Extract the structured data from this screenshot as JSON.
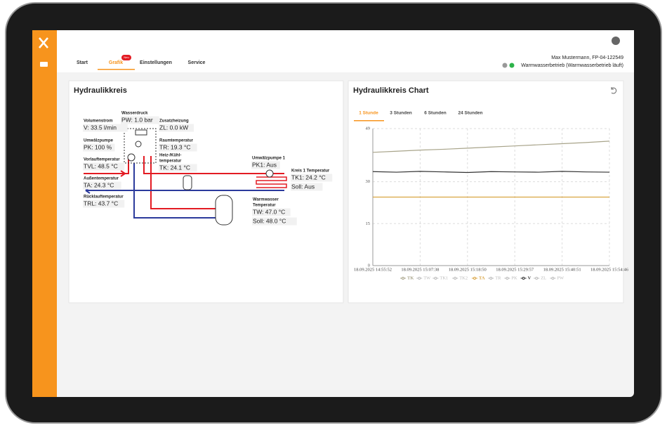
{
  "nav": {
    "tabs": [
      "Start",
      "Grafik",
      "Einstellungen",
      "Service"
    ],
    "badge": "Neu"
  },
  "user": {
    "name": "Max Mustermann, FP-04-122549",
    "status": "Warmwasserbetrieb (Warmwasserbetrieb läuft)"
  },
  "diagram": {
    "title": "Hydraulikkreis",
    "fields": [
      {
        "label": [
          "Wasserdruck"
        ],
        "values": [
          "PW: 1.0 bar"
        ]
      },
      {
        "label": [
          "Volumenstrom"
        ],
        "values": [
          "V: 33.5 l/min"
        ]
      },
      {
        "label": [
          "Zusatzheizung"
        ],
        "values": [
          "ZL: 0.0 kW"
        ]
      },
      {
        "label": [
          "Umwälzpumpe"
        ],
        "values": [
          "PK: 100 %"
        ]
      },
      {
        "label": [
          "Raumtemperatur"
        ],
        "values": [
          "TR: 19.3 °C"
        ]
      },
      {
        "label": [
          "Vorlauftemperatur"
        ],
        "values": [
          "TVL: 48.5 °C"
        ]
      },
      {
        "label": [
          "Heiz-/Kühl-",
          "temperatur"
        ],
        "values": [
          "TK: 24.1 °C"
        ]
      },
      {
        "label": [
          "Außentemperatur"
        ],
        "values": [
          "TA: 24.3 °C"
        ]
      },
      {
        "label": [
          "Rücklauftemperatur"
        ],
        "values": [
          "TRL: 43.7 °C"
        ]
      },
      {
        "label": [
          "Umwälzpumpe 1"
        ],
        "values": [
          "PK1: Aus"
        ]
      },
      {
        "label": [
          "Kreis 1 Temperatur"
        ],
        "values": [
          "TK1: 24.2 °C",
          "Soll: Aus"
        ]
      },
      {
        "label": [
          "Warmwasser",
          "Temperatur"
        ],
        "values": [
          "TW: 47.0 °C",
          "Soll: 48.0 °C"
        ]
      }
    ]
  },
  "chart_data": {
    "type": "line",
    "title": "Hydraulikkreis Chart",
    "ranges": [
      "1 Stunde",
      "3 Stunden",
      "6 Stunden",
      "24 Stunden"
    ],
    "categories": [
      "18.09.2025 14:55:52",
      null,
      "18.09.2025 15:07:38",
      null,
      "18.09.2025 15:18:50",
      null,
      "18.09.2025 15:29:57",
      null,
      "18.09.2025 15:40:51",
      null,
      "18.09.2025 15:54:46"
    ],
    "ylim": [
      0,
      49
    ],
    "yticks": [
      0,
      15,
      30,
      49
    ],
    "grid": true,
    "series": [
      {
        "name": "TK",
        "color": "#a8a48a",
        "values": [
          40.5,
          40.9,
          41.3,
          41.6,
          42,
          42.4,
          42.8,
          43.2,
          43.6,
          44,
          44.5
        ]
      },
      {
        "name": "TW",
        "color": "#bbbbbb",
        "hidden": true
      },
      {
        "name": "TK1",
        "color": "#bbbbbb",
        "hidden": true
      },
      {
        "name": "TK2",
        "color": "#bbbbbb",
        "hidden": true
      },
      {
        "name": "TA",
        "color": "#d9a441",
        "values": [
          24.5,
          24.5,
          24.5,
          24.5,
          24.5,
          24.5,
          24.5,
          24.5,
          24.5,
          24.5,
          24.5
        ]
      },
      {
        "name": "TR",
        "color": "#bbbbbb",
        "hidden": true
      },
      {
        "name": "PK",
        "color": "#bbbbbb",
        "hidden": true
      },
      {
        "name": "V",
        "color": "#333333",
        "values": [
          33.6,
          33.4,
          33.7,
          33.5,
          33.3,
          33.6,
          33.5,
          33.4,
          33.7,
          33.5,
          33.4
        ]
      },
      {
        "name": "ZL",
        "color": "#bbbbbb",
        "hidden": true
      },
      {
        "name": "PW",
        "color": "#bbbbbb",
        "hidden": true
      }
    ]
  }
}
